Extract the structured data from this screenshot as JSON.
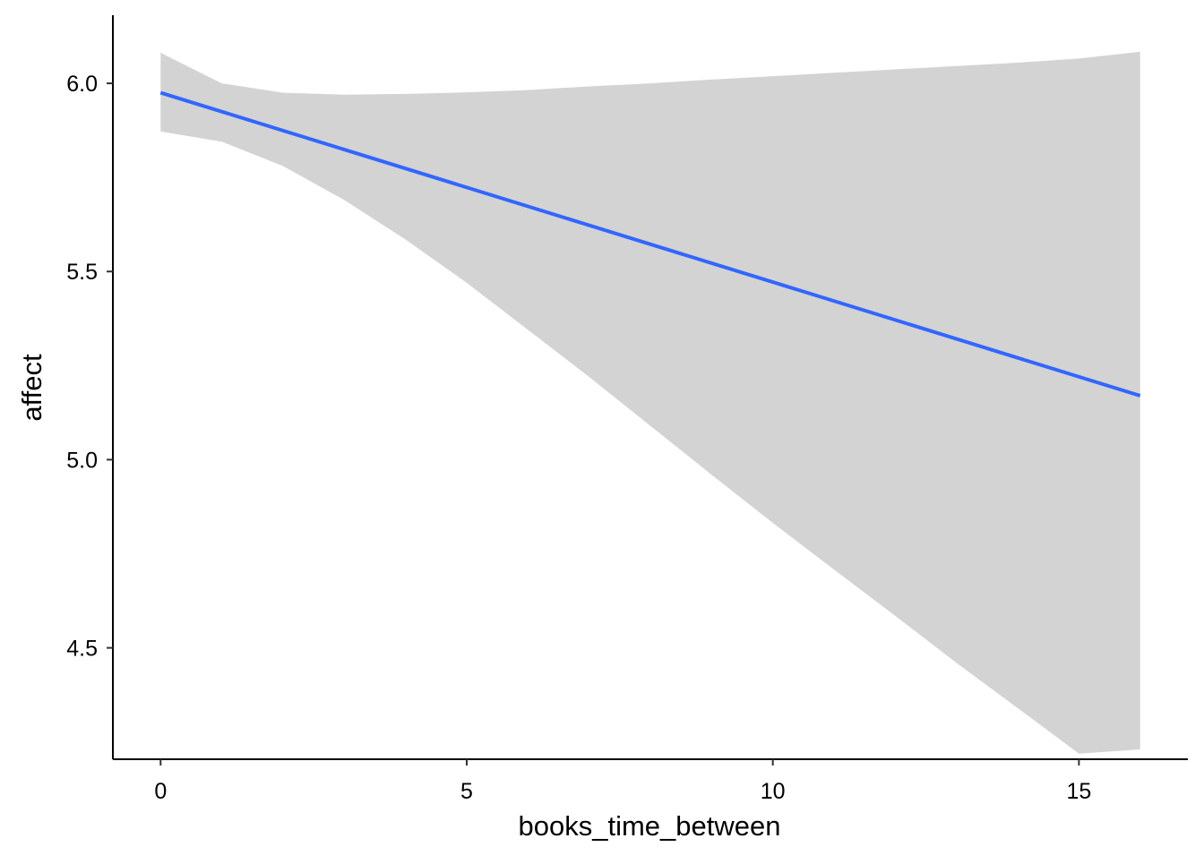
{
  "chart_data": {
    "type": "line",
    "xlabel": "books_time_between",
    "ylabel": "affect",
    "xlim": [
      -0.78,
      16.78
    ],
    "ylim": [
      4.204,
      6.181
    ],
    "x_ticks": [
      0,
      5,
      10,
      15
    ],
    "x_tick_labels": [
      "0",
      "5",
      "10",
      "15"
    ],
    "y_ticks": [
      4.5,
      5.0,
      5.5,
      6.0
    ],
    "y_tick_labels": [
      "4.5",
      "5.0",
      "5.5",
      "6.0"
    ],
    "grid": false,
    "series": [
      {
        "color": "#3366ff",
        "x": [
          0,
          16
        ],
        "y": [
          5.975,
          5.17
        ]
      }
    ],
    "confidence_band": {
      "color": "#d3d3d3",
      "x": [
        0,
        1,
        2,
        3,
        4,
        5,
        6,
        7,
        8,
        9,
        10,
        11,
        12,
        13,
        14,
        15,
        16
      ],
      "upper": [
        6.081,
        6.0,
        5.975,
        5.97,
        5.972,
        5.976,
        5.982,
        5.992,
        6.0,
        6.01,
        6.019,
        6.028,
        6.037,
        6.046,
        6.055,
        6.066,
        6.084
      ],
      "lower": [
        5.872,
        5.845,
        5.78,
        5.69,
        5.585,
        5.47,
        5.345,
        5.22,
        5.09,
        4.96,
        4.832,
        4.708,
        4.585,
        4.46,
        4.34,
        4.219,
        4.23
      ]
    }
  }
}
